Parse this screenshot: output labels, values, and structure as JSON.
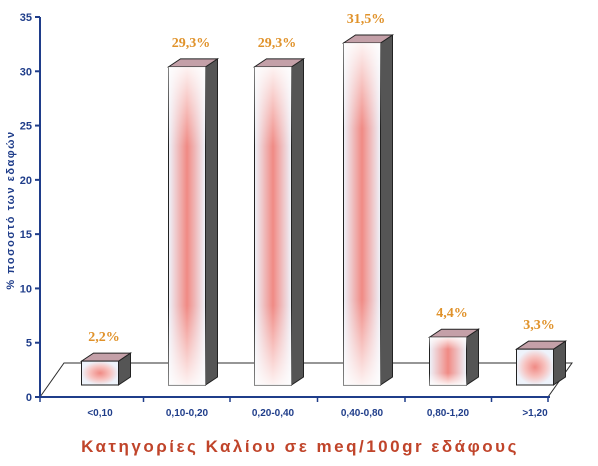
{
  "chart_data": {
    "type": "bar",
    "categories": [
      "<0,10",
      "0,10-0,20",
      "0,20-0,40",
      "0,40-0,80",
      "0,80-1,20",
      ">1,20"
    ],
    "values": [
      2.2,
      29.3,
      29.3,
      31.5,
      4.4,
      3.3
    ],
    "value_labels": [
      "2,2%",
      "29,3%",
      "29,3%",
      "31,5%",
      "4,4%",
      "3,3%"
    ],
    "title": "",
    "xlabel": "Κατηγορίες Καλίου σε meq/100gr εδάφους",
    "ylabel": "% ποσοστό των εδαφών",
    "ylim": [
      0,
      35
    ],
    "yticks": [
      "0",
      "5",
      "10",
      "15",
      "20",
      "25",
      "30",
      "35"
    ],
    "grid": false,
    "style": "3d",
    "colors": {
      "axis": "#1f3d8a",
      "tick_text": "#1f3d8a",
      "value_label": "#e0922a",
      "xlabel": "#c0442a",
      "bar_front_edge": "#eef3fb",
      "bar_front_center": "#f08a84",
      "bar_side": "#555555",
      "bar_top": "#c4a0a8"
    }
  }
}
